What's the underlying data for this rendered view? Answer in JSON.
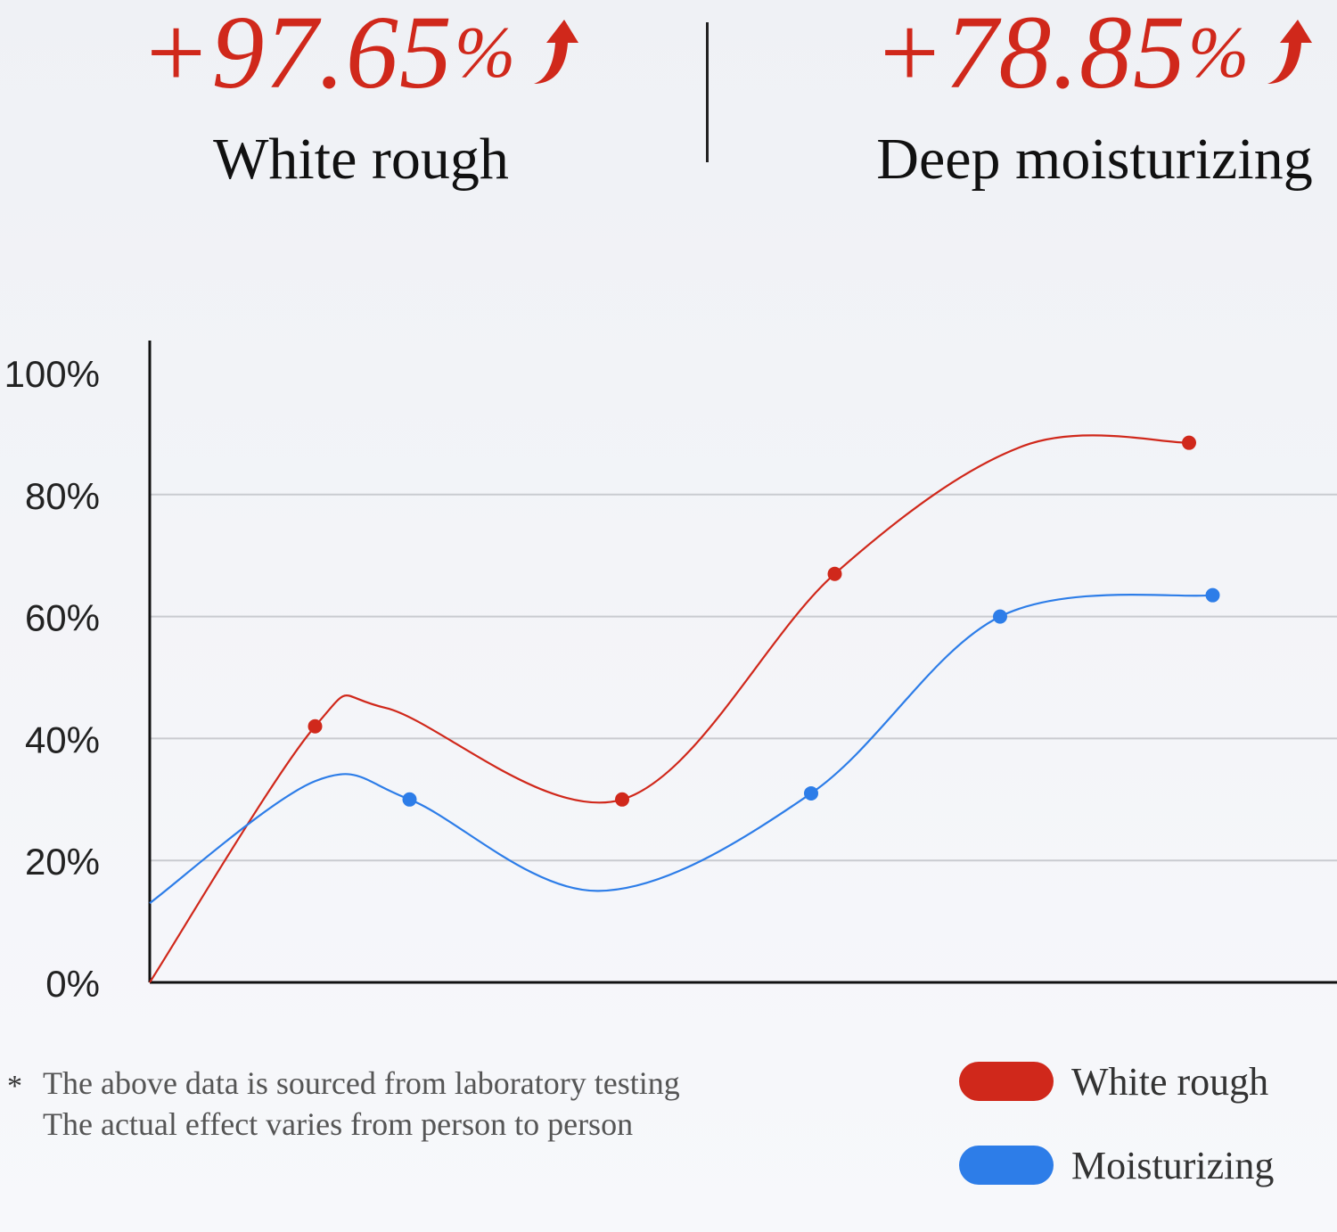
{
  "stats": [
    {
      "value": "+97.65",
      "unit": "%",
      "label": "White rough"
    },
    {
      "value": "+78.85",
      "unit": "%",
      "label": "Deep moisturizing"
    }
  ],
  "colors": {
    "red": "#d0281b",
    "blue": "#2d7de8",
    "accent": "#d0281b"
  },
  "icons": {
    "trend": "arrow-up-icon"
  },
  "chart_data": {
    "type": "line",
    "title": "",
    "xlabel": "",
    "ylabel": "",
    "ylim": [
      0,
      100
    ],
    "yticks": [
      "0%",
      "20%",
      "40%",
      "60%",
      "80%",
      "100%"
    ],
    "grid": true,
    "legend_position": "bottom-right",
    "series": [
      {
        "name": "White rough",
        "color": "#d0281b",
        "curve": [
          [
            0,
            0
          ],
          [
            7,
            42
          ],
          [
            10,
            45
          ],
          [
            20,
            30
          ],
          [
            29,
            67
          ],
          [
            37,
            88
          ],
          [
            44,
            88.5
          ]
        ],
        "points": [
          [
            7,
            42
          ],
          [
            20,
            30
          ],
          [
            29,
            67
          ],
          [
            44,
            88.5
          ]
        ]
      },
      {
        "name": "Moisturizing",
        "color": "#2d7de8",
        "curve": [
          [
            0,
            13
          ],
          [
            7,
            33
          ],
          [
            11,
            30
          ],
          [
            19,
            15
          ],
          [
            28,
            31
          ],
          [
            36,
            60
          ],
          [
            45,
            63.5
          ]
        ],
        "points": [
          [
            11,
            30
          ],
          [
            28,
            31
          ],
          [
            36,
            60
          ],
          [
            45,
            63.5
          ]
        ]
      }
    ]
  },
  "legend": [
    {
      "label": "White rough",
      "color": "#d0281b"
    },
    {
      "label": "Moisturizing",
      "color": "#2d7de8"
    }
  ],
  "footnote": {
    "marker": "*",
    "line1": "The above data is sourced from laboratory testing",
    "line2": "The actual effect varies from person to person"
  }
}
